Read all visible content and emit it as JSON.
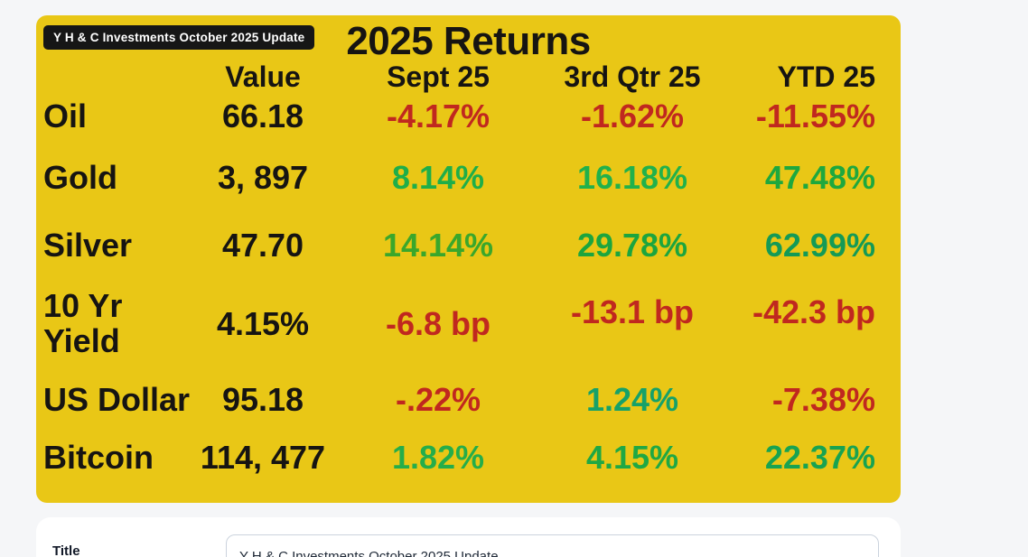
{
  "graphic": {
    "badge": "Y H & C Investments October 2025 Update",
    "title": "2025 Returns",
    "headers": {
      "value": "Value",
      "sept": "Sept 25",
      "qtr": "3rd Qtr 25",
      "ytd": "YTD 25"
    },
    "rows": [
      {
        "name": "Oil",
        "value": "66.18",
        "sept": {
          "text": "-4.17%",
          "color": "#c0281f"
        },
        "qtr": {
          "text": "-1.62%",
          "color": "#c0281f"
        },
        "ytd": {
          "text": "-11.55%",
          "color": "#c0281f"
        }
      },
      {
        "name": "Gold",
        "value": "3, 897",
        "sept": {
          "text": "8.14%",
          "color": "#1fae49"
        },
        "qtr": {
          "text": "16.18%",
          "color": "#21b14b"
        },
        "ytd": {
          "text": "47.48%",
          "color": "#1ea83e"
        }
      },
      {
        "name": "Silver",
        "value": "47.70",
        "sept": {
          "text": "14.14%",
          "color": "#3aa72b"
        },
        "qtr": {
          "text": "29.78%",
          "color": "#1ca53e"
        },
        "ytd": {
          "text": "62.99%",
          "color": "#149a56"
        }
      },
      {
        "name": "10 Yr\nYield",
        "value": "4.15%",
        "sept": {
          "text": "-6.8 bp",
          "color": "#c0281f"
        },
        "qtr": {
          "text": "-13.1 bp",
          "color": "#c0281f"
        },
        "ytd": {
          "text": "-42.3 bp",
          "color": "#c0281f"
        }
      },
      {
        "name": "US Dollar",
        "value": "95.18",
        "sept": {
          "text": "-.22%",
          "color": "#c0281f"
        },
        "qtr": {
          "text": "1.24%",
          "color": "#16a169"
        },
        "ytd": {
          "text": "-7.38%",
          "color": "#c0281f"
        }
      },
      {
        "name": "Bitcoin",
        "value": "114, 477",
        "sept": {
          "text": "1.82%",
          "color": "#25ad4a"
        },
        "qtr": {
          "text": "4.15%",
          "color": "#1fa844"
        },
        "ytd": {
          "text": "22.37%",
          "color": "#18a351"
        }
      }
    ],
    "colors": {
      "background": "#e9c716",
      "text": "#161412",
      "negative": "#c0281f",
      "positive": "#1fa844",
      "badge_bg": "#161616",
      "badge_text": "#ffffff"
    }
  },
  "form": {
    "title_label": "Title",
    "title_value": "Y H & C Investments October 2025 Update"
  }
}
